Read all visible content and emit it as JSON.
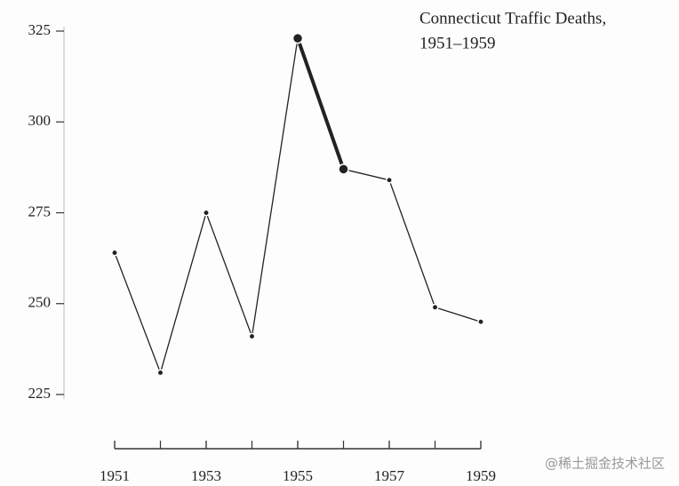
{
  "chart_data": {
    "type": "line",
    "title": "Connecticut Traffic Deaths,",
    "subtitle": "1951–1959",
    "x": [
      1951,
      1952,
      1953,
      1954,
      1955,
      1956,
      1957,
      1958,
      1959
    ],
    "values": [
      264,
      231,
      275,
      241,
      323,
      287,
      284,
      249,
      245
    ],
    "xlim": [
      1951,
      1959
    ],
    "xticks": [
      1951,
      1953,
      1955,
      1957,
      1959
    ],
    "ylim": [
      225,
      325
    ],
    "yticks": [
      225,
      250,
      275,
      300,
      325
    ],
    "highlight_x": [
      1955,
      1956
    ],
    "color": "#222",
    "watermark": "@稀土掘金技术社区"
  }
}
